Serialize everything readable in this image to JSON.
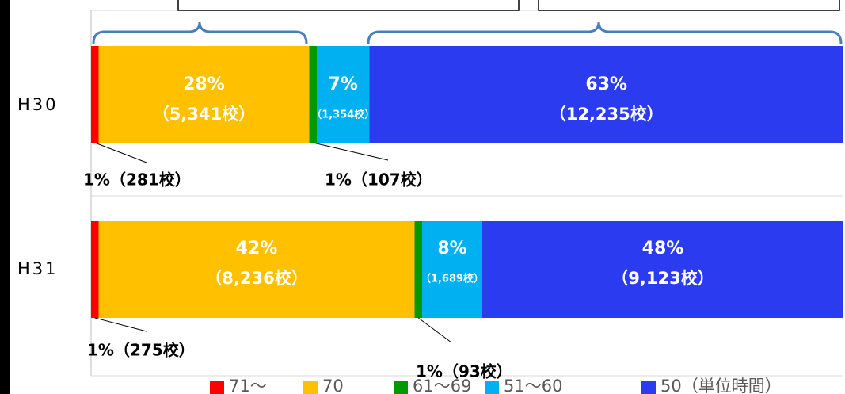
{
  "chart_data": {
    "type": "stacked-bar-horizontal",
    "categories": [
      "H30",
      "H31"
    ],
    "xlim": [
      0,
      100
    ],
    "series": [
      {
        "name": "71〜",
        "color": "#ff0000",
        "values": [
          1,
          1
        ],
        "value_labels": [
          "1%（281校）",
          "1%（275校）"
        ]
      },
      {
        "name": "70",
        "color": "#ffc000",
        "values": [
          28,
          42
        ],
        "value_labels": [
          [
            "28%",
            "（5,341校）"
          ],
          [
            "42%",
            "（8,236校）"
          ]
        ]
      },
      {
        "name": "61〜69",
        "color": "#009a00",
        "values": [
          1,
          1
        ],
        "value_labels": [
          "1%（107校）",
          "1%（93校）"
        ]
      },
      {
        "name": "51〜60",
        "color": "#00b0f0",
        "values": [
          7,
          8
        ],
        "value_labels": [
          [
            "7%",
            "（1,354校）"
          ],
          [
            "8%",
            "（1,689校）"
          ]
        ]
      },
      {
        "name": "50（単位時間）",
        "color": "#2b3cf0",
        "values": [
          63,
          48
        ],
        "value_labels": [
          [
            "63%",
            "（12,235校）"
          ],
          [
            "48%",
            "（9,123校）"
          ]
        ]
      }
    ]
  }
}
